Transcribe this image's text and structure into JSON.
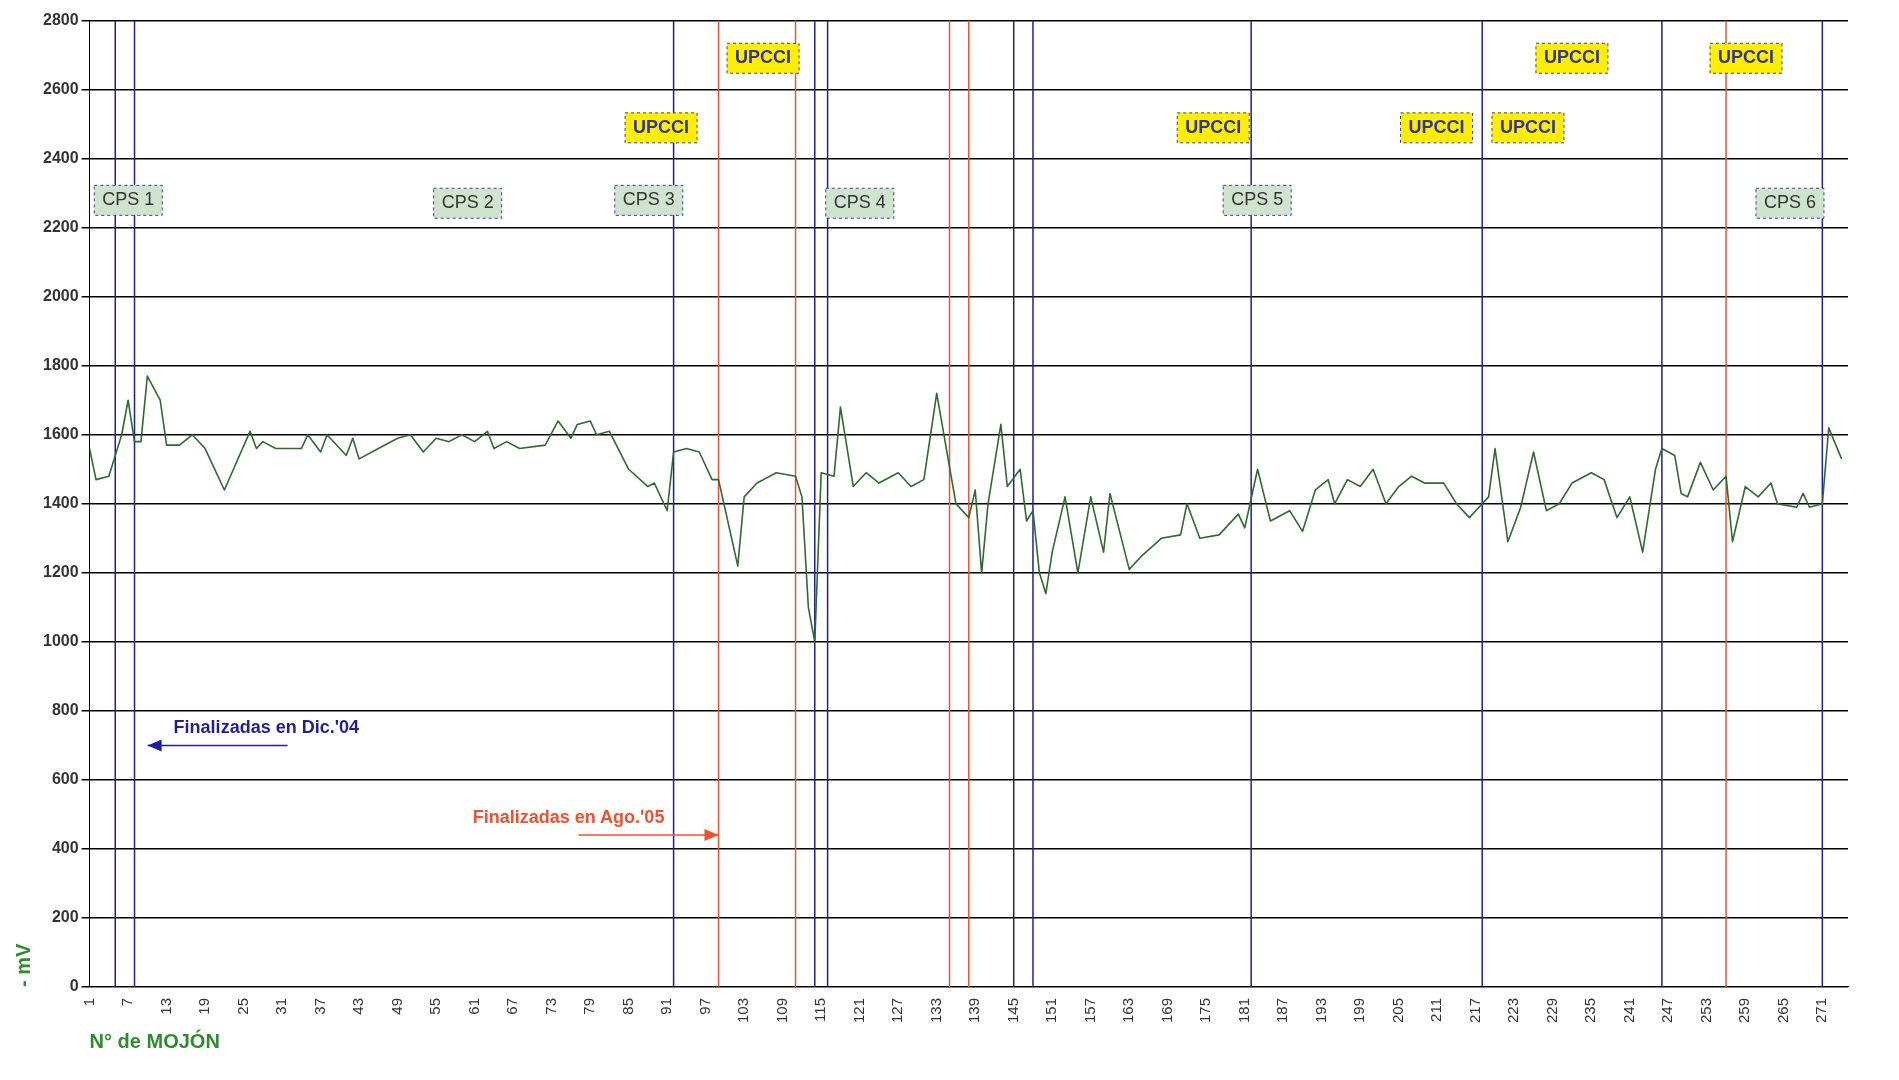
{
  "chart_data": {
    "type": "line",
    "xlabel": "N° de MOJÓN",
    "ylabel": "- mV",
    "x": [
      1,
      2,
      4,
      6,
      7,
      8,
      9,
      10,
      12,
      13,
      15,
      17,
      19,
      22,
      26,
      27,
      28,
      30,
      34,
      35,
      37,
      38,
      41,
      42,
      43,
      46,
      49,
      51,
      53,
      55,
      57,
      59,
      61,
      63,
      64,
      66,
      68,
      72,
      74,
      76,
      77,
      79,
      80,
      82,
      85,
      88,
      89,
      91,
      92,
      94,
      96,
      98,
      99,
      102,
      103,
      105,
      108,
      111,
      112,
      113,
      114,
      115,
      117,
      118,
      120,
      122,
      124,
      127,
      129,
      131,
      133,
      136,
      138,
      139,
      140,
      141,
      143,
      144,
      146,
      147,
      148,
      149,
      150,
      151,
      153,
      155,
      157,
      159,
      160,
      163,
      165,
      168,
      171,
      172,
      174,
      177,
      180,
      181,
      183,
      185,
      188,
      190,
      192,
      194,
      195,
      197,
      199,
      201,
      203,
      205,
      207,
      209,
      212,
      214,
      216,
      218,
      219,
      220,
      222,
      224,
      226,
      228,
      230,
      232,
      235,
      237,
      239,
      241,
      243,
      245,
      246,
      248,
      249,
      250,
      252,
      254,
      256,
      257,
      259,
      261,
      263,
      264,
      267,
      268,
      269,
      271,
      272,
      274
    ],
    "series": [
      {
        "color": "#2e6b2e",
        "values": [
          1560,
          1470,
          1480,
          1600,
          1700,
          1580,
          1580,
          1770,
          1700,
          1570,
          1570,
          1600,
          1560,
          1440,
          1610,
          1560,
          1580,
          1560,
          1560,
          1600,
          1550,
          1600,
          1540,
          1590,
          1530,
          1560,
          1590,
          1600,
          1550,
          1590,
          1580,
          1600,
          1580,
          1610,
          1560,
          1580,
          1560,
          1570,
          1640,
          1590,
          1630,
          1640,
          1600,
          1610,
          1500,
          1450,
          1460,
          1380,
          1550,
          1560,
          1550,
          1470,
          1470,
          1220,
          1420,
          1460,
          1490,
          1480,
          1420,
          1100,
          1000,
          1490,
          1480,
          1680,
          1450,
          1490,
          1460,
          1490,
          1450,
          1470,
          1720,
          1400,
          1360,
          1440,
          1200,
          1400,
          1630,
          1450,
          1500,
          1350,
          1380,
          1200,
          1140,
          1260,
          1420,
          1200,
          1420,
          1260,
          1430,
          1210,
          1250,
          1300,
          1310,
          1400,
          1300,
          1310,
          1370,
          1330,
          1500,
          1350,
          1380,
          1320,
          1440,
          1470,
          1400,
          1470,
          1450,
          1500,
          1400,
          1450,
          1480,
          1460,
          1460,
          1400,
          1360,
          1400,
          1420,
          1560,
          1290,
          1390,
          1550,
          1380,
          1400,
          1460,
          1490,
          1470,
          1360,
          1420,
          1260,
          1500,
          1560,
          1540,
          1430,
          1420,
          1520,
          1440,
          1480,
          1290,
          1450,
          1420,
          1460,
          1400,
          1390,
          1430,
          1390,
          1400,
          1620,
          1530
        ]
      }
    ],
    "xlim": [
      1,
      275
    ],
    "xticks": [
      1,
      7,
      13,
      19,
      25,
      31,
      37,
      43,
      49,
      55,
      61,
      67,
      73,
      79,
      85,
      91,
      97,
      103,
      109,
      115,
      121,
      127,
      133,
      139,
      145,
      151,
      157,
      163,
      169,
      175,
      181,
      187,
      193,
      199,
      205,
      211,
      217,
      223,
      229,
      235,
      241,
      247,
      253,
      259,
      265,
      271
    ],
    "ylim": [
      0,
      2800
    ],
    "yticks": [
      0,
      200,
      400,
      600,
      800,
      1000,
      1200,
      1400,
      1600,
      1800,
      2000,
      2200,
      2400,
      2600,
      2800
    ],
    "grid": "y",
    "legend": false,
    "marker": "none",
    "line_style": "solid",
    "ref_lines": [
      {
        "axis": "x",
        "value": 5,
        "color": "#1f1f99"
      },
      {
        "axis": "x",
        "value": 8,
        "color": "#1f1f99"
      },
      {
        "axis": "x",
        "value": 92,
        "color": "#1f1f99"
      },
      {
        "axis": "x",
        "value": 114,
        "color": "#1f1f99"
      },
      {
        "axis": "x",
        "value": 116,
        "color": "#1f1f99"
      },
      {
        "axis": "x",
        "value": 145,
        "color": "#1f1f99"
      },
      {
        "axis": "x",
        "value": 148,
        "color": "#1f1f99"
      },
      {
        "axis": "x",
        "value": 182,
        "color": "#1f1f99"
      },
      {
        "axis": "x",
        "value": 218,
        "color": "#1f1f99"
      },
      {
        "axis": "x",
        "value": 246,
        "color": "#1f1f99"
      },
      {
        "axis": "x",
        "value": 271,
        "color": "#1f1f99"
      },
      {
        "axis": "x",
        "value": 99,
        "color": "#f05030"
      },
      {
        "axis": "x",
        "value": 111,
        "color": "#f05030"
      },
      {
        "axis": "x",
        "value": 135,
        "color": "#f05030"
      },
      {
        "axis": "x",
        "value": 138,
        "color": "#f05030"
      },
      {
        "axis": "x",
        "value": 256,
        "color": "#f05030"
      }
    ],
    "annotations": [
      "CPS 1",
      "CPS 2",
      "CPS 3",
      "CPS 4",
      "CPS 5",
      "CPS 6",
      "UPCCI",
      "UPCCI",
      "UPCCI",
      "UPCCI",
      "UPCCI",
      "UPCCI",
      "UPCCI",
      "Finalizadas en Dic.'04",
      {
        "text": "Finalizadas en Ago.'05",
        "x": 99,
        "y": 440
      }
    ]
  }
}
